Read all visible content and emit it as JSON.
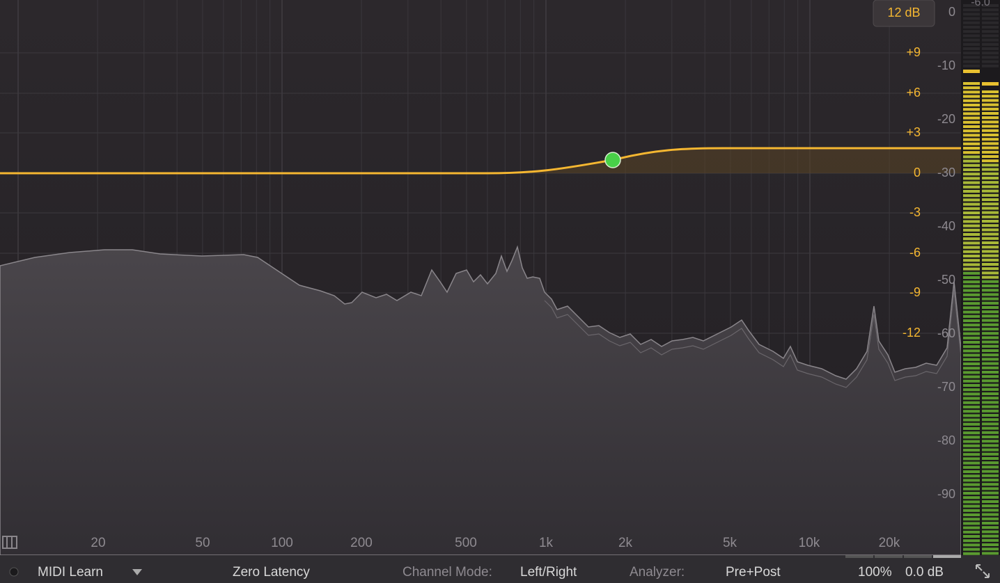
{
  "range_button": "12 dB",
  "meter_top": "-6.0",
  "eq_scale": [
    "+9",
    "+6",
    "+3",
    "0",
    "-3",
    "-6",
    "-9",
    "-12"
  ],
  "analyzer_scale": [
    "0",
    "-10",
    "-20",
    "-30",
    "-40",
    "-50",
    "-60",
    "-70",
    "-80",
    "-90"
  ],
  "freq_labels": [
    "20",
    "50",
    "100",
    "200",
    "500",
    "1k",
    "2k",
    "5k",
    "10k",
    "20k"
  ],
  "bottom_bar": {
    "midi_learn": "MIDI Learn",
    "latency": "Zero Latency",
    "channel_mode_label": "Channel Mode:",
    "channel_mode": "Left/Right",
    "analyzer_label": "Analyzer:",
    "analyzer": "Pre+Post",
    "zoom": "100%",
    "gain": "0.0 dB"
  }
}
